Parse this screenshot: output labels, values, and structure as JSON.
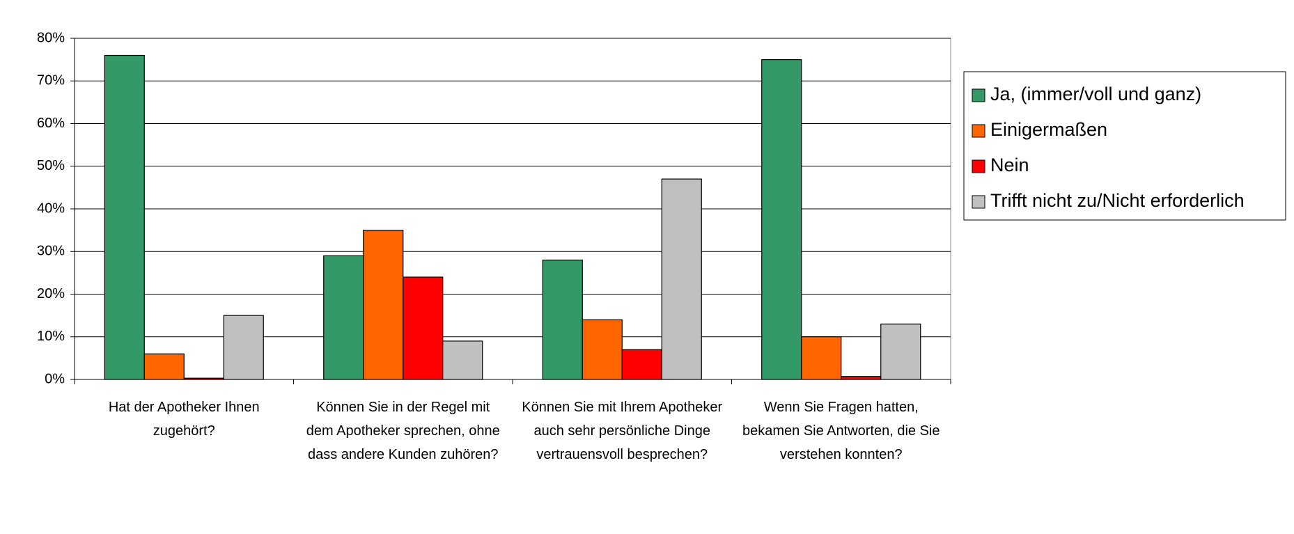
{
  "chart_data": {
    "type": "bar",
    "categories": [
      "Hat der Apotheker Ihnen zugehört?",
      "Können Sie in der Regel mit dem Apotheker sprechen, ohne dass andere Kunden zuhören?",
      "Können Sie mit Ihrem Apotheker auch sehr persönliche Dinge vertrauensvoll besprechen?",
      "Wenn Sie Fragen hatten, bekamen Sie Antworten, die Sie verstehen konnten?"
    ],
    "series": [
      {
        "name": "Ja, (immer/voll und ganz)",
        "color": "#339966",
        "values": [
          76,
          29,
          28,
          75
        ]
      },
      {
        "name": "Einigermaßen",
        "color": "#ff6600",
        "values": [
          6,
          35,
          14,
          10
        ]
      },
      {
        "name": "Nein",
        "color": "#ff0000",
        "values": [
          0.3,
          24,
          7,
          0.7
        ]
      },
      {
        "name": "Trifft nicht zu/Nicht erforderlich",
        "color": "#c0c0c0",
        "values": [
          15,
          9,
          47,
          13
        ]
      }
    ],
    "ylim": [
      0,
      80
    ],
    "yticks": [
      {
        "value": 0,
        "label": "0%"
      },
      {
        "value": 10,
        "label": "10%"
      },
      {
        "value": 20,
        "label": "20%"
      },
      {
        "value": 30,
        "label": "30%"
      },
      {
        "value": 40,
        "label": "40%"
      },
      {
        "value": 50,
        "label": "50%"
      },
      {
        "value": 60,
        "label": "60%"
      },
      {
        "value": 70,
        "label": "70%"
      },
      {
        "value": 80,
        "label": "80%"
      }
    ],
    "grid": true,
    "legend": "right"
  }
}
